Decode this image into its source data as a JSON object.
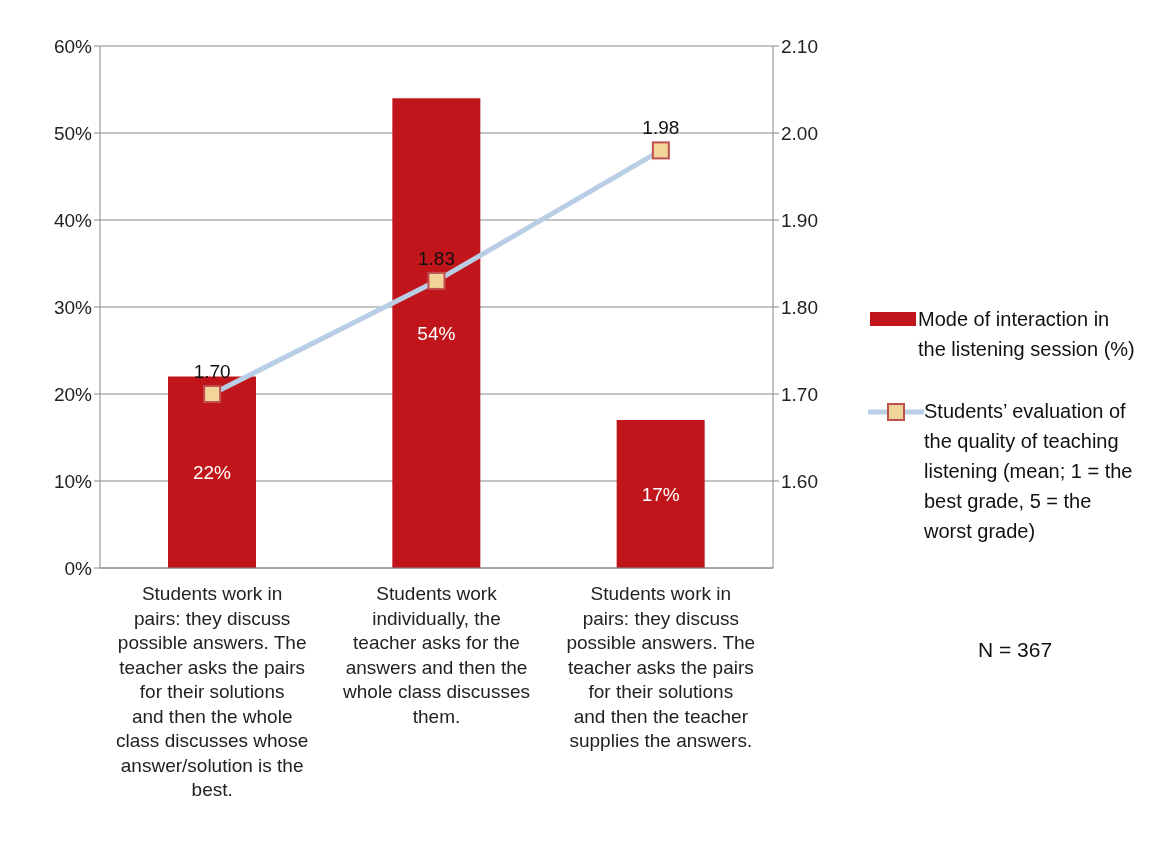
{
  "chart_data": {
    "type": "bar",
    "categories": [
      "Students work in pairs: they discuss possible answers. The teacher asks the pairs for their solutions and then the whole class discusses whose answer/solution is the best.",
      "Students work individually, the teacher asks for the answers and then the whole class discusses them.",
      "Students work in pairs: they discuss possible answers. The teacher asks the pairs for their solutions and then the teacher supplies the answers."
    ],
    "series": [
      {
        "name": "Mode of interaction in the listening session (%)",
        "color": "#c0161b",
        "values": [
          22,
          54,
          17
        ],
        "value_labels": [
          "22%",
          "54%",
          "17%"
        ]
      },
      {
        "name": "Students’ evaluation of the quality of teaching listening (mean; 1 = the best grade, 5 = the worst grade)",
        "type": "line",
        "axis": "y2",
        "color": "#b9cde5",
        "values": [
          1.7,
          1.83,
          1.98
        ],
        "value_labels": [
          "1.70",
          "1.83",
          "1.98"
        ],
        "marker": "square",
        "line_style": "solid"
      }
    ],
    "ylim": [
      0,
      60
    ],
    "yticks": [
      {
        "value": 0,
        "label": "0%"
      },
      {
        "value": 10,
        "label": "10%"
      },
      {
        "value": 20,
        "label": "20%"
      },
      {
        "value": 30,
        "label": "30%"
      },
      {
        "value": 40,
        "label": "40%"
      },
      {
        "value": 50,
        "label": "50%"
      },
      {
        "value": 60,
        "label": "60%"
      }
    ],
    "y2lim": [
      1.5,
      2.1
    ],
    "y2ticks": [
      {
        "value": 1.6,
        "label": "1.60"
      },
      {
        "value": 1.7,
        "label": "1.70"
      },
      {
        "value": 1.8,
        "label": "1.80"
      },
      {
        "value": 1.9,
        "label": "1.90"
      },
      {
        "value": 2.0,
        "label": "2.00"
      },
      {
        "value": 2.1,
        "label": "2.10"
      }
    ],
    "grid": "y",
    "legend": "right",
    "annotations": [
      "N = 367"
    ]
  }
}
